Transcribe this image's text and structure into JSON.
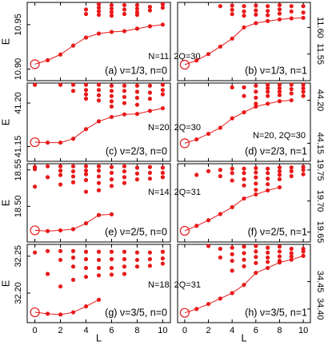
{
  "chart_data": [
    {
      "type": "scatter",
      "label": "(a) ν=1/3, n=0",
      "ylabel": "E",
      "annotation": "N=11, 2Q=30",
      "xlim": [
        -0.6,
        10.6
      ],
      "xticks": [
        0,
        2,
        4,
        6,
        8,
        10
      ],
      "ylim": [
        10.887,
        10.975
      ],
      "yticks": [
        {
          "value": 10.9,
          "label": "10.90"
        },
        {
          "value": 10.95,
          "label": "10.95"
        }
      ],
      "series": [
        {
          "color": "#e8191a",
          "x": [
            4,
            4,
            5,
            5,
            5,
            5,
            6,
            6,
            6,
            6,
            7,
            7,
            7,
            8,
            8,
            8,
            8,
            9,
            9,
            10,
            10
          ],
          "values": [
            10.962,
            10.967,
            10.961,
            10.965,
            10.969,
            10.973,
            10.96,
            10.964,
            10.968,
            10.972,
            10.962,
            10.967,
            10.972,
            10.961,
            10.964,
            10.968,
            10.972,
            10.966,
            10.97,
            10.969,
            10.973
          ]
        },
        {
          "color": "#e8191a",
          "line": true,
          "first_marker": "open",
          "x": [
            0,
            1,
            2,
            3,
            4,
            5,
            6,
            7,
            8,
            9,
            10
          ],
          "values": [
            10.9055,
            10.91,
            10.9164,
            10.9264,
            10.9355,
            10.94,
            10.9418,
            10.9427,
            10.9455,
            10.9482,
            10.95
          ]
        }
      ]
    },
    {
      "type": "scatter",
      "label": "(b) ν=1/3, n=1",
      "xlim": [
        -0.6,
        10.6
      ],
      "xticks": [
        0,
        2,
        4,
        6,
        8,
        10
      ],
      "ylim": [
        11.5,
        11.647
      ],
      "yticks": [
        11.55,
        {
          "value": 11.6,
          "label": "11.60"
        }
      ],
      "series": [
        {
          "color": "#e8191a",
          "x": [
            3,
            4,
            4,
            4,
            5,
            5,
            5,
            6,
            6,
            6,
            7,
            7,
            7,
            8,
            8,
            8,
            9,
            9,
            10,
            10
          ],
          "values": [
            11.64,
            11.625,
            11.633,
            11.641,
            11.622,
            11.63,
            11.64,
            11.624,
            11.632,
            11.641,
            11.623,
            11.631,
            11.64,
            11.626,
            11.634,
            11.642,
            11.63,
            11.64,
            11.628,
            11.64
          ]
        },
        {
          "color": "#e8191a",
          "line": true,
          "first_marker": "open",
          "x": [
            0,
            1,
            2,
            3,
            4,
            5,
            6,
            7,
            8,
            9,
            10
          ],
          "values": [
            11.53,
            11.538,
            11.55,
            11.564,
            11.579,
            11.6,
            11.608,
            11.612,
            11.615,
            11.617,
            11.618
          ]
        }
      ]
    },
    {
      "type": "scatter",
      "label": "(c) ν=2/3, n=0",
      "ylabel": "E",
      "annotation": "N=20, 2Q=30",
      "xlim": [
        -0.6,
        10.6
      ],
      "xticks": [
        0,
        2,
        4,
        6,
        8,
        10
      ],
      "ylim": [
        41.133,
        41.223
      ],
      "yticks": [
        41.15,
        {
          "value": 41.2,
          "label": "41.20"
        }
      ],
      "series": [
        {
          "color": "#e8191a",
          "x": [
            0,
            2,
            3,
            3,
            4,
            4,
            4,
            4,
            5,
            5,
            5,
            5,
            6,
            6,
            6,
            6,
            6,
            7,
            7,
            7,
            7,
            8,
            8,
            8,
            8,
            9,
            9,
            9,
            10,
            10,
            10
          ],
          "values": [
            41.221,
            41.221,
            41.214,
            41.221,
            41.205,
            41.21,
            41.215,
            41.221,
            41.203,
            41.209,
            41.215,
            41.221,
            41.196,
            41.202,
            41.208,
            41.214,
            41.22,
            41.2,
            41.207,
            41.214,
            41.22,
            41.198,
            41.206,
            41.213,
            41.22,
            41.205,
            41.212,
            41.22,
            41.21,
            41.215,
            41.221
          ]
        },
        {
          "color": "#e8191a",
          "line": true,
          "first_marker": "open",
          "x": [
            0,
            1,
            2,
            3,
            4,
            5,
            6,
            7,
            8,
            9,
            10
          ],
          "values": [
            41.155,
            41.1545,
            41.1545,
            41.159,
            41.17,
            41.179,
            41.184,
            41.187,
            41.1875,
            41.191,
            41.194
          ]
        }
      ]
    },
    {
      "type": "scatter",
      "label": "(d) ν=2/3, n=1",
      "annotation": "N=20, 2Q=30",
      "xlim": [
        -0.6,
        10.6
      ],
      "xticks": [
        0,
        2,
        4,
        6,
        8,
        10
      ],
      "ylim": [
        44.129,
        44.22
      ],
      "yticks": [
        44.15,
        {
          "value": 44.2,
          "label": "44.20"
        }
      ],
      "series": [
        {
          "color": "#e8191a",
          "x": [
            4,
            5,
            5,
            6,
            6,
            6,
            6,
            7,
            7,
            7,
            7,
            8,
            8,
            8,
            8,
            9,
            9,
            9,
            10,
            10,
            10,
            10
          ],
          "values": [
            44.215,
            44.205,
            44.215,
            44.196,
            44.203,
            44.21,
            44.217,
            44.205,
            44.21,
            44.214,
            44.218,
            44.206,
            44.21,
            44.214,
            44.218,
            44.208,
            44.213,
            44.218,
            44.205,
            44.21,
            44.214,
            44.218
          ]
        },
        {
          "color": "#e8191a",
          "line": true,
          "first_marker": "open",
          "x": [
            0,
            1,
            2,
            3,
            4,
            5,
            6,
            7,
            8,
            9
          ],
          "values": [
            44.15,
            44.1545,
            44.161,
            44.168,
            44.179,
            44.186,
            44.1927,
            44.196,
            44.199,
            44.2
          ]
        }
      ]
    },
    {
      "type": "scatter",
      "label": "(e) ν=2/5, n=0",
      "ylabel": "E",
      "annotation": "N=14, 2Q=31",
      "xlim": [
        -0.6,
        10.6
      ],
      "xticks": [
        0,
        2,
        4,
        6,
        8,
        10
      ],
      "ylim": [
        18.451,
        18.5585
      ],
      "yticks": [
        {
          "value": 18.5,
          "label": "18.50"
        },
        18.55
      ],
      "series": [
        {
          "color": "#e8191a",
          "x": [
            0,
            0,
            0,
            1,
            1,
            2,
            2,
            2,
            2,
            3,
            3,
            3,
            3,
            4,
            4,
            4,
            4,
            4,
            5,
            5,
            5,
            5,
            5,
            6,
            6,
            6,
            6,
            7,
            7,
            7,
            7,
            8,
            8,
            8,
            9,
            9,
            9,
            10,
            10,
            10
          ],
          "values": [
            18.554,
            18.551,
            18.527,
            18.555,
            18.54,
            18.555,
            18.549,
            18.543,
            18.53,
            18.555,
            18.548,
            18.541,
            18.533,
            18.555,
            18.549,
            18.544,
            18.536,
            18.52,
            18.555,
            18.549,
            18.541,
            18.532,
            18.522,
            18.554,
            18.546,
            18.537,
            18.528,
            18.555,
            18.548,
            18.54,
            18.532,
            18.553,
            18.545,
            18.537,
            18.554,
            18.546,
            18.538,
            18.553,
            18.546,
            18.54
          ]
        },
        {
          "color": "#e8191a",
          "line": true,
          "first_marker": "open",
          "x": [
            0,
            1,
            2,
            3,
            4,
            5,
            6
          ],
          "values": [
            18.467,
            18.466,
            18.467,
            18.4686,
            18.4766,
            18.488,
            18.489
          ]
        }
      ]
    },
    {
      "type": "scatter",
      "label": "(f) ν=2/5, n=1",
      "xlim": [
        -0.6,
        10.6
      ],
      "xticks": [
        0,
        2,
        4,
        6,
        8,
        10
      ],
      "ylim": [
        19.634,
        19.76
      ],
      "yticks": [
        19.65,
        {
          "value": 19.7,
          "label": "19.70"
        },
        19.75
      ],
      "series": [
        {
          "color": "#e8191a",
          "x": [
            1,
            2,
            3,
            3,
            4,
            4,
            4,
            5,
            5,
            5,
            5,
            6,
            6,
            6,
            6,
            6,
            7,
            7,
            7,
            7,
            8,
            8,
            8,
            8,
            9,
            9,
            9,
            10,
            10,
            10
          ],
          "values": [
            19.742,
            19.748,
            19.74,
            19.75,
            19.733,
            19.745,
            19.752,
            19.725,
            19.735,
            19.745,
            19.752,
            19.718,
            19.728,
            19.738,
            19.746,
            19.753,
            19.727,
            19.736,
            19.745,
            19.752,
            19.735,
            19.742,
            19.748,
            19.754,
            19.74,
            19.748,
            19.754,
            19.743,
            19.75,
            19.755
          ]
        },
        {
          "color": "#e8191a",
          "line": true,
          "first_marker": "open",
          "x": [
            0,
            1,
            2,
            3,
            4,
            5,
            6,
            7,
            8
          ],
          "values": [
            19.652,
            19.66,
            19.669,
            19.679,
            19.69,
            19.704,
            19.7106,
            19.717,
            19.722
          ]
        }
      ]
    },
    {
      "type": "scatter",
      "label": "(g) ν=3/5, n=0",
      "ylabel": "E",
      "xlabel": "L",
      "annotation": "N=18, 2Q=31",
      "xlim": [
        -0.6,
        10.6
      ],
      "xticks": [
        0,
        2,
        4,
        6,
        8,
        10
      ],
      "ylim": [
        32.16,
        32.266
      ],
      "yticks": [
        {
          "value": 32.2,
          "label": "32.20"
        },
        32.25
      ],
      "series": [
        {
          "color": "#e8191a",
          "x": [
            0,
            1,
            1,
            2,
            2,
            2,
            3,
            3,
            3,
            3,
            4,
            4,
            4,
            4,
            5,
            5,
            5,
            5,
            6,
            6,
            6,
            6,
            7,
            7,
            7,
            7,
            8,
            8,
            8,
            9,
            9,
            9,
            10,
            10,
            10
          ],
          "values": [
            32.255,
            32.257,
            32.226,
            32.257,
            32.245,
            32.209,
            32.257,
            32.248,
            32.236,
            32.218,
            32.256,
            32.246,
            32.234,
            32.222,
            32.256,
            32.245,
            32.234,
            32.224,
            32.256,
            32.246,
            32.234,
            32.225,
            32.256,
            32.246,
            32.236,
            32.226,
            32.255,
            32.245,
            32.236,
            32.255,
            32.246,
            32.237,
            32.256,
            32.247,
            32.24
          ]
        },
        {
          "color": "#e8191a",
          "line": true,
          "first_marker": "open",
          "x": [
            0,
            1,
            2,
            3,
            4,
            5
          ],
          "values": [
            32.174,
            32.172,
            32.171,
            32.174,
            32.182,
            32.191
          ]
        }
      ]
    },
    {
      "type": "scatter",
      "label": "(h) ν=3/5, n=1",
      "xlabel": "L",
      "xlim": [
        -0.6,
        10.6
      ],
      "xticks": [
        0,
        2,
        4,
        6,
        8,
        10
      ],
      "ylim": [
        34.375,
        34.518
      ],
      "yticks": [
        {
          "value": 34.4,
          "label": "34.40"
        },
        34.45
      ],
      "series": [
        {
          "color": "#e8191a",
          "x": [
            2,
            3,
            3,
            4,
            4,
            4,
            4,
            5,
            5,
            5,
            5,
            6,
            6,
            6,
            6,
            7,
            7,
            7,
            7,
            8,
            8,
            8,
            8,
            9,
            9,
            9,
            10,
            10
          ],
          "values": [
            34.515,
            34.51,
            34.494,
            34.512,
            34.5,
            34.488,
            34.47,
            34.514,
            34.502,
            34.49,
            34.478,
            34.515,
            34.505,
            34.495,
            34.484,
            34.512,
            34.503,
            34.494,
            34.486,
            34.514,
            34.505,
            34.496,
            34.488,
            34.51,
            34.502,
            34.496,
            34.51,
            34.505
          ]
        },
        {
          "color": "#e8191a",
          "line": true,
          "first_marker": "open",
          "x": [
            0,
            1,
            2,
            3,
            4,
            5,
            6,
            7,
            8,
            9,
            10
          ],
          "values": [
            34.393,
            34.4,
            34.409,
            34.419,
            34.429,
            34.444,
            34.466,
            34.475,
            34.485,
            34.49,
            34.497
          ]
        }
      ]
    }
  ]
}
